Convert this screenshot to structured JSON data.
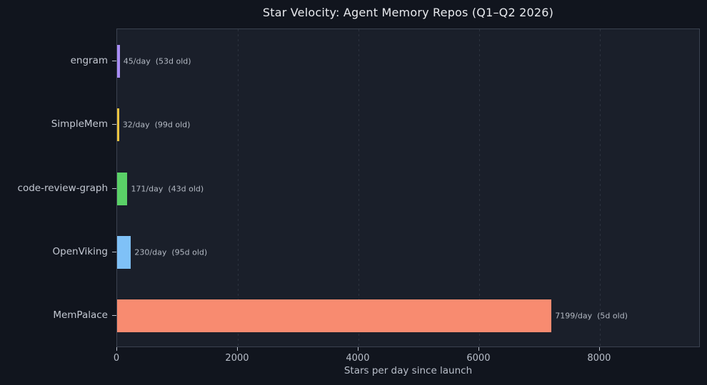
{
  "chart_data": {
    "type": "bar",
    "orientation": "horizontal",
    "title": "Star Velocity: Agent Memory Repos (Q1–Q2 2026)",
    "xlabel": "Stars per day since launch",
    "ylabel": "",
    "categories": [
      "engram",
      "SimpleMem",
      "code-review-graph",
      "OpenViking",
      "MemPalace"
    ],
    "values": [
      45,
      32,
      171,
      230,
      7199
    ],
    "annotations": [
      "45/day  (53d old)",
      "32/day  (99d old)",
      "171/day  (43d old)",
      "230/day  (95d old)",
      "7199/day  (5d old)"
    ],
    "ages_days": [
      53,
      99,
      43,
      95,
      5
    ],
    "bar_colors": [
      "#a98df6",
      "#ecc440",
      "#5ad167",
      "#7fc1f7",
      "#f88b70"
    ],
    "x_ticks": [
      0,
      2000,
      4000,
      6000,
      8000
    ],
    "x_tick_labels": [
      "0",
      "2000",
      "4000",
      "6000",
      "8000"
    ],
    "xlim": [
      0,
      9670
    ],
    "grid": "vertical-dashed",
    "legend": "none"
  },
  "colors": {
    "figure_bg": "#11151e",
    "plot_bg": "#1a1f2a",
    "spine": "#3b4250",
    "grid": "#2c323e",
    "title": "#e8eaee",
    "labels": "#c3c8d2",
    "ticks": "#b9bfca",
    "annotations": "#b3b9c3"
  }
}
